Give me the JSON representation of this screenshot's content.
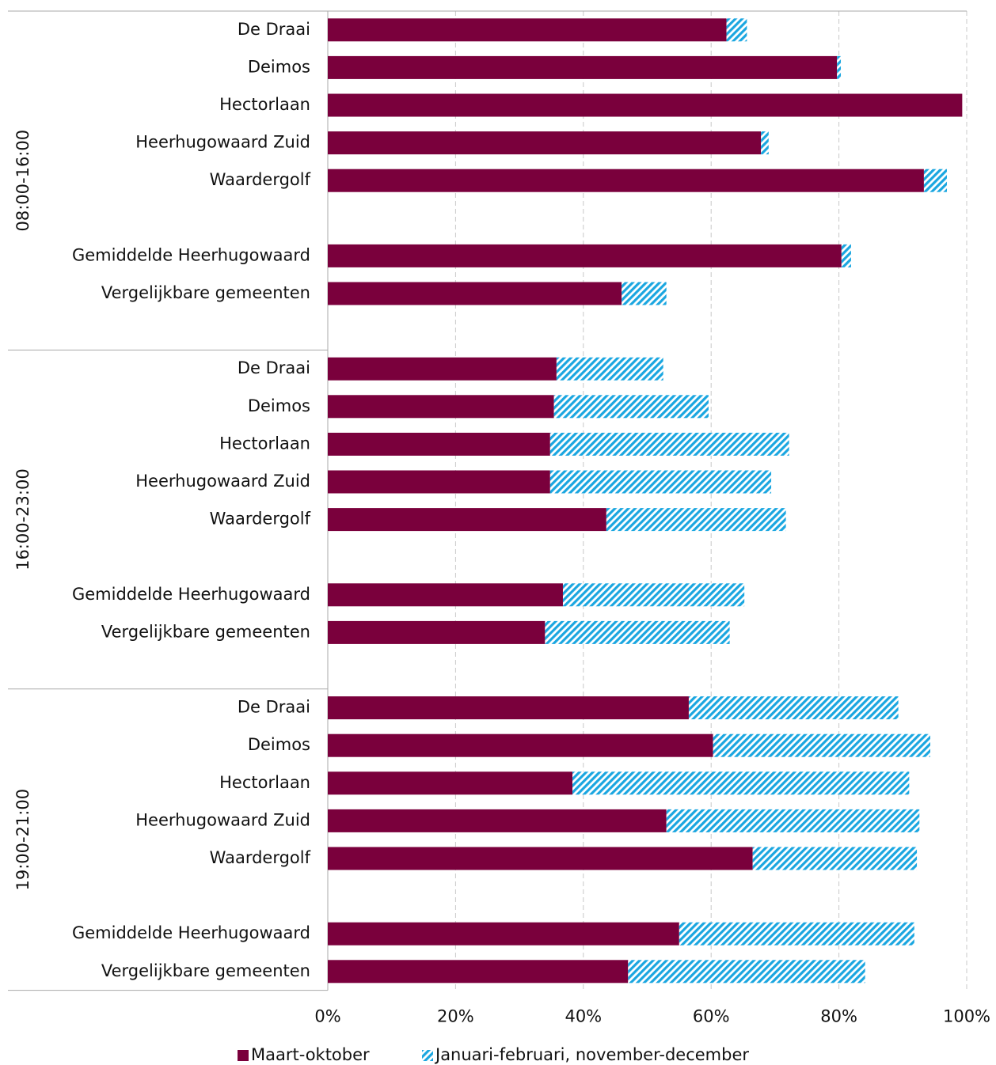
{
  "chart_data": {
    "type": "stacked-bar-horizontal",
    "group_labels": [
      "08:00-16:00",
      "16:00-23:00",
      "19:00-21:00"
    ],
    "categories": [
      [
        "De Draai",
        "Deimos",
        "Hectorlaan",
        "Heerhugowaard Zuid",
        "Waardergolf",
        null,
        "Gemiddelde Heerhugowaard",
        "Vergelijkbare gemeenten",
        null
      ],
      [
        "De Draai",
        "Deimos",
        "Hectorlaan",
        "Heerhugowaard Zuid",
        "Waardergolf",
        null,
        "Gemiddelde Heerhugowaard",
        "Vergelijkbare gemeenten",
        null
      ],
      [
        "De Draai",
        "Deimos",
        "Hectorlaan",
        "Heerhugowaard Zuid",
        "Waardergolf",
        null,
        "Gemiddelde Heerhugowaard",
        "Vergelijkbare gemeenten"
      ]
    ],
    "series": [
      {
        "name": "Maart-oktober",
        "color": "#7a003c",
        "values": [
          [
            62.4,
            79.7,
            99.3,
            67.8,
            93.3,
            null,
            80.4,
            46.0,
            null
          ],
          [
            35.8,
            35.4,
            34.8,
            34.8,
            43.6,
            null,
            36.8,
            34.0,
            null
          ],
          [
            56.5,
            60.3,
            38.3,
            53.0,
            66.5,
            null,
            55.0,
            47.0
          ]
        ]
      },
      {
        "name": "Januari-februari, november-december",
        "color": "#1aa6e0",
        "pattern": "hatch",
        "values": [
          [
            3.2,
            0.6,
            0,
            1.2,
            3.6,
            null,
            1.5,
            7.0,
            null
          ],
          [
            16.7,
            24.2,
            37.4,
            34.6,
            28.1,
            null,
            28.4,
            28.9,
            null
          ],
          [
            32.8,
            34.0,
            52.7,
            39.6,
            25.7,
            null,
            36.8,
            37.1
          ]
        ]
      }
    ],
    "xlim": [
      0,
      100
    ],
    "xticks": [
      {
        "value": 0,
        "label": "0%"
      },
      {
        "value": 20,
        "label": "20%"
      },
      {
        "value": 40,
        "label": "40%"
      },
      {
        "value": 60,
        "label": "60%"
      },
      {
        "value": 80,
        "label": "80%"
      },
      {
        "value": 100,
        "label": "100%"
      }
    ],
    "grid": true,
    "legend": "bottom"
  }
}
